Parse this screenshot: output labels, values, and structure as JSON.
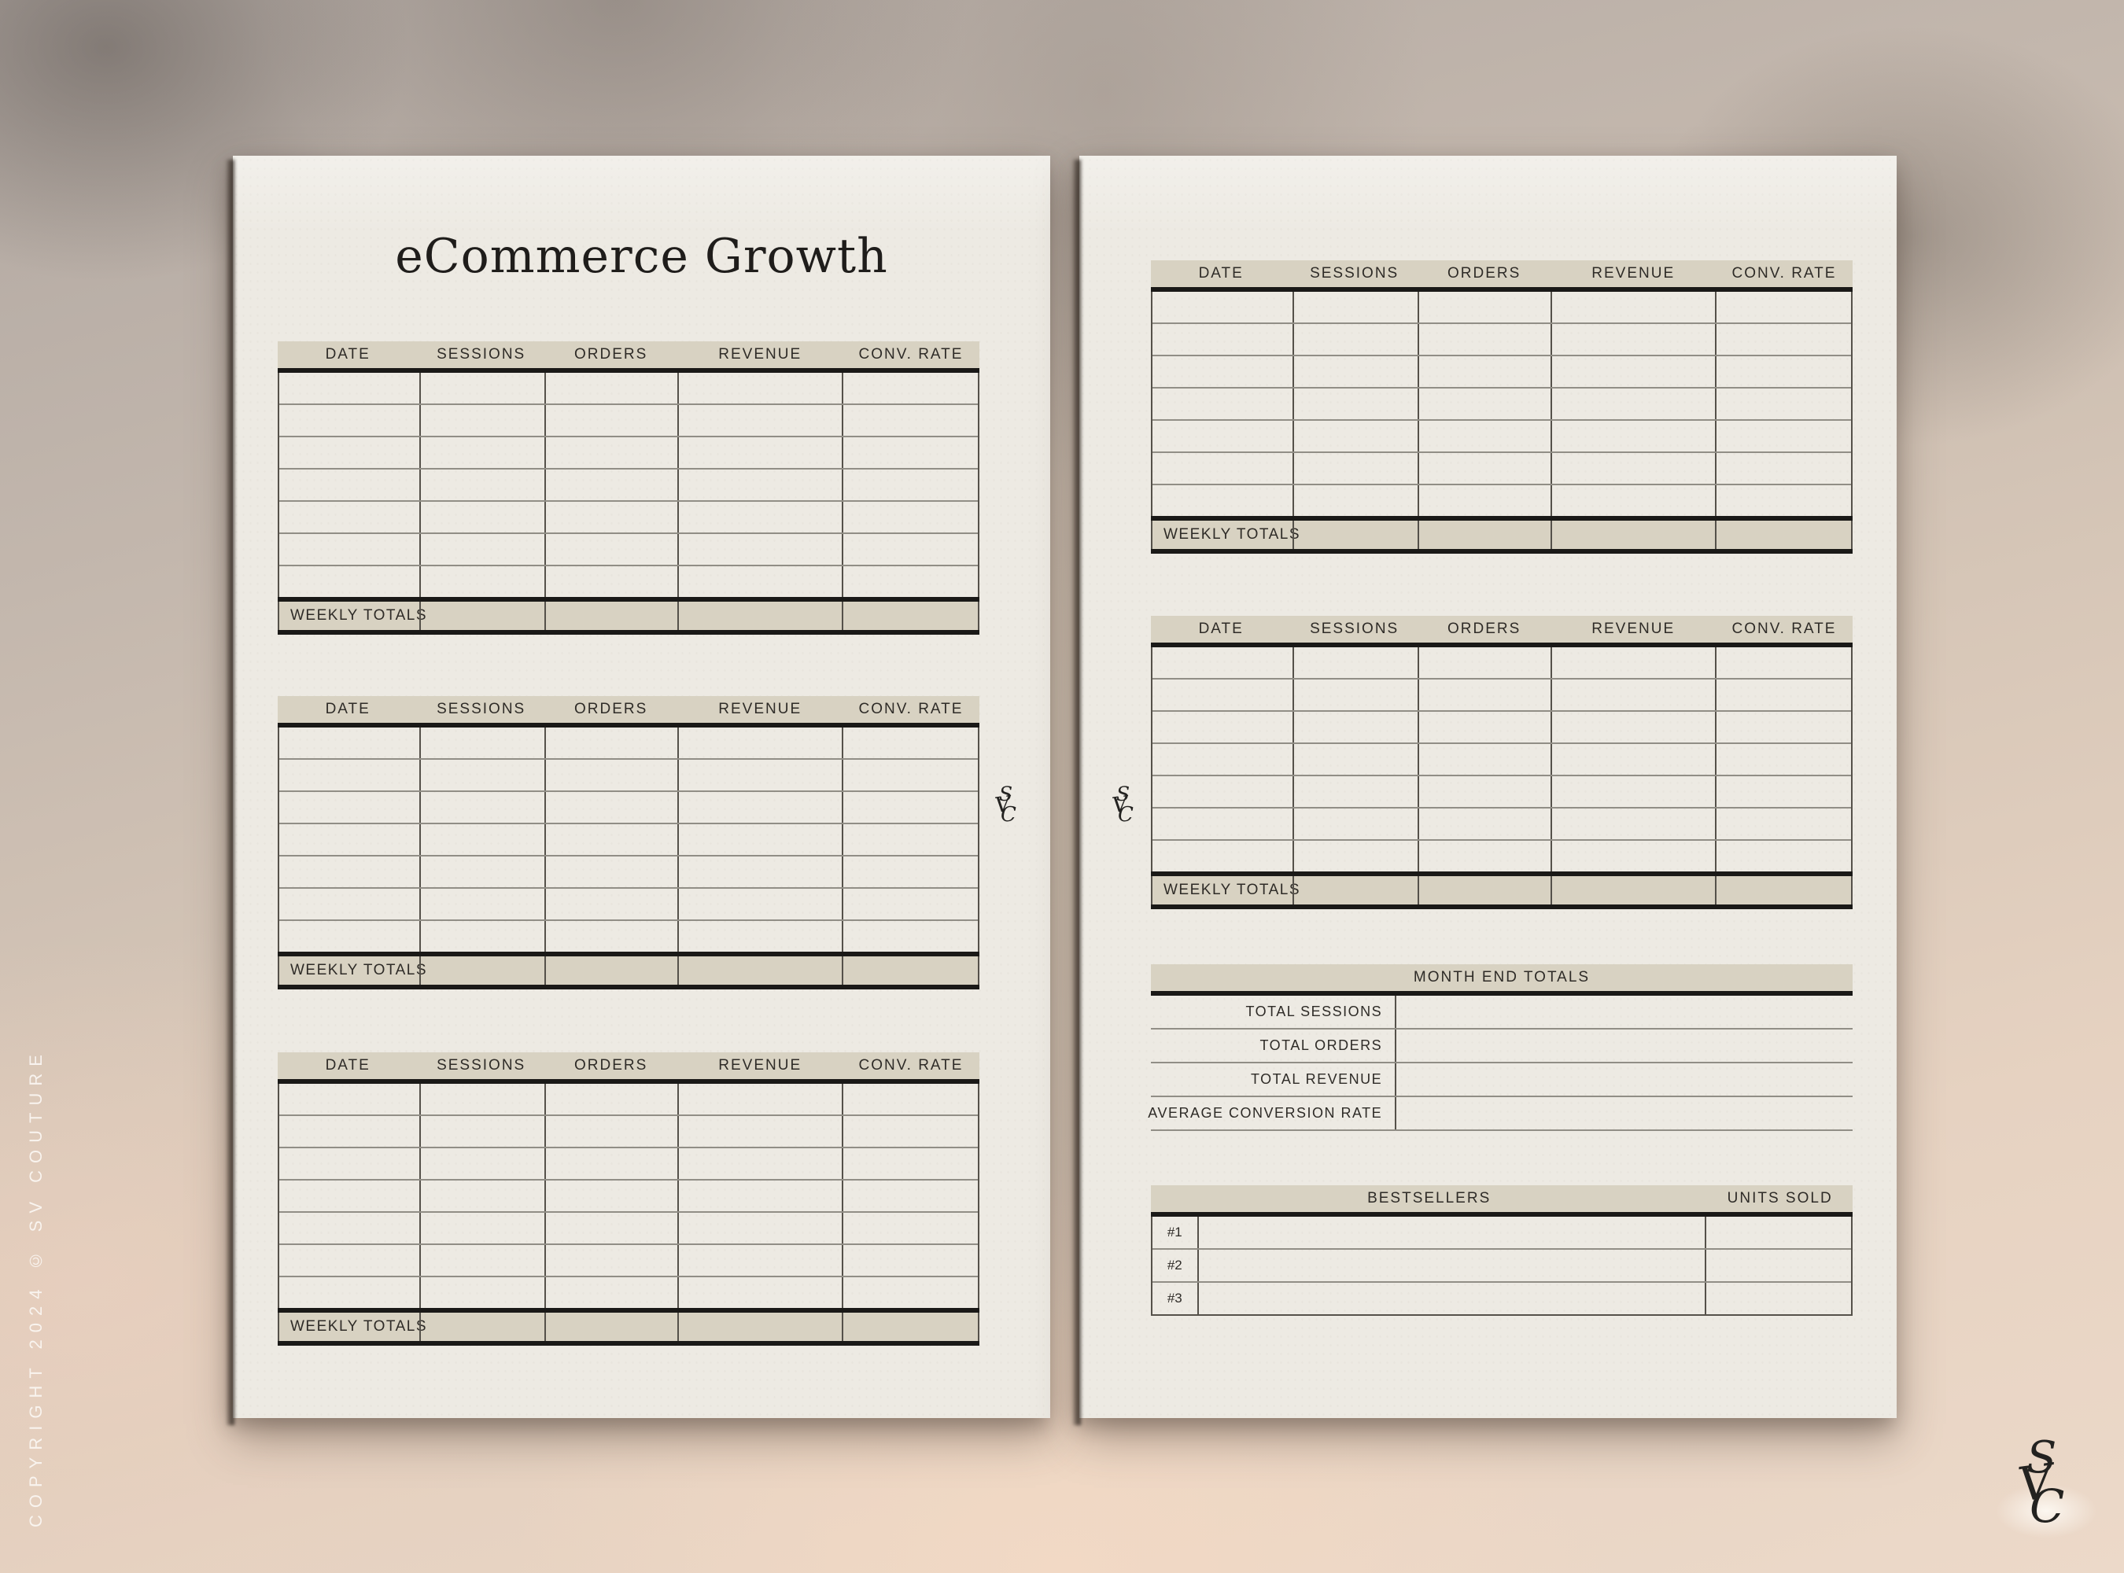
{
  "colors": {
    "paper": "#edeae3",
    "accent_band": "#d8d2c2",
    "rule_thick": "#1a1917",
    "rule_thin": "#918e86",
    "divider": "#55514a",
    "text": "#2e2b27",
    "copyright_text": "#faf6f1"
  },
  "weekly_table": {
    "columns": [
      "DATE",
      "SESSIONS",
      "ORDERS",
      "REVENUE",
      "CONV. RATE"
    ],
    "totals_label": "WEEKLY TOTALS",
    "data_rows": 7,
    "empty_value": ""
  },
  "left_page": {
    "title": "eCommerce Growth",
    "table_count": 3
  },
  "right_page": {
    "table_count": 2,
    "month_end_totals": {
      "title": "MONTH END TOTALS",
      "rows": [
        {
          "label": "TOTAL SESSIONS",
          "value": ""
        },
        {
          "label": "TOTAL ORDERS",
          "value": ""
        },
        {
          "label": "TOTAL REVENUE",
          "value": ""
        },
        {
          "label": "AVERAGE CONVERSION RATE",
          "value": ""
        }
      ]
    },
    "bestsellers": {
      "title": "BESTSELLERS",
      "units_sold_label": "UNITS SOLD",
      "rows": [
        {
          "rank": "#1",
          "name": "",
          "units": ""
        },
        {
          "rank": "#2",
          "name": "",
          "units": ""
        },
        {
          "rank": "#3",
          "name": "",
          "units": ""
        }
      ]
    }
  },
  "watermarks": {
    "copyright": "COPYRIGHT 2024 © SV COUTURE",
    "monogram": {
      "letters": [
        "S",
        "V",
        "C"
      ]
    }
  }
}
